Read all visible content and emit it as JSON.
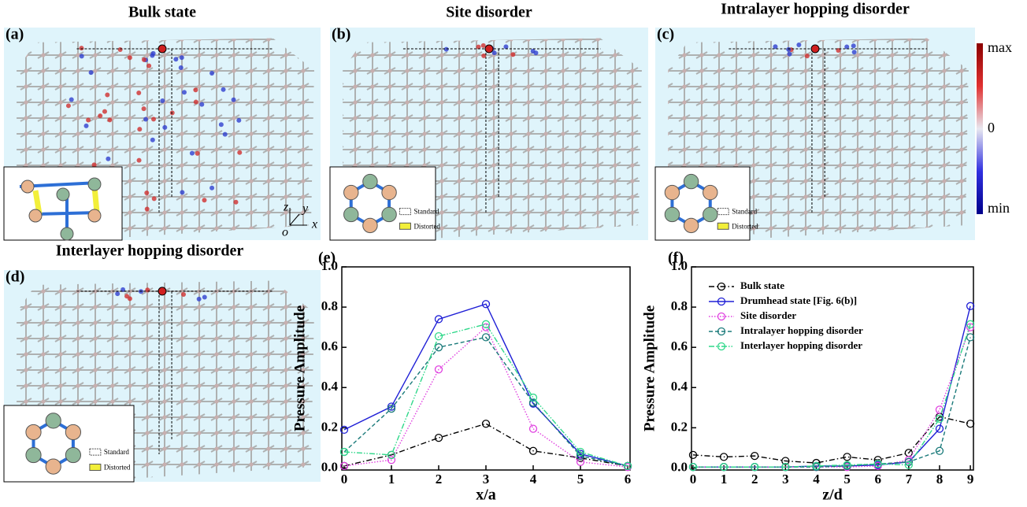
{
  "panels": [
    {
      "label": "(a)",
      "title": "Bulk state",
      "axes": {
        "z": "z",
        "y": "y",
        "o": "o",
        "x": "x"
      }
    },
    {
      "label": "(b)",
      "title": "Site disorder",
      "legend": [
        "Standard",
        "Distorted"
      ]
    },
    {
      "label": "(c)",
      "title": "Intralayer hopping disorder",
      "legend": [
        "Standard",
        "Distorted"
      ]
    },
    {
      "label": "(d)",
      "title": "Interlayer hopping disorder",
      "legend": [
        "Standard",
        "Distorted"
      ]
    }
  ],
  "colorbar": {
    "max": "max",
    "mid": "0",
    "min": "min"
  },
  "chart_data": [
    {
      "type": "line",
      "label": "(e)",
      "xlabel": "x/a",
      "ylabel": "Pressure Amplitude",
      "x": [
        0,
        1,
        2,
        3,
        4,
        5,
        6
      ],
      "xlim": [
        -0.05,
        6.05
      ],
      "xticks": [
        0,
        1,
        2,
        3,
        4,
        5,
        6
      ],
      "ylim": [
        -0.01,
        1.0
      ],
      "yticks": [
        {
          "value": 0,
          "label": "0.0"
        },
        0.2,
        0.4,
        0.6,
        0.8,
        {
          "value": 1,
          "label": "1.0"
        }
      ],
      "series": [
        {
          "color": "#000000",
          "style": "dashdot",
          "values": [
            0.01,
            0.065,
            0.15,
            0.22,
            0.085,
            0.05,
            0.01
          ]
        },
        {
          "color": "#1f1fd6",
          "style": "solid",
          "values": [
            0.19,
            0.305,
            0.74,
            0.815,
            0.32,
            0.07,
            0.01
          ]
        },
        {
          "color": "#e040e0",
          "style": "dotted",
          "values": [
            0.01,
            0.04,
            0.49,
            0.7,
            0.195,
            0.03,
            0.005
          ]
        },
        {
          "color": "#1a7a7a",
          "style": "dashed",
          "values": [
            0.08,
            0.295,
            0.6,
            0.65,
            0.325,
            0.06,
            0.01
          ]
        },
        {
          "color": "#2fd88a",
          "style": "dashdotdot",
          "values": [
            0.08,
            0.065,
            0.655,
            0.715,
            0.35,
            0.08,
            0.01
          ]
        }
      ]
    },
    {
      "type": "line",
      "label": "(f)",
      "xlabel": "z/d",
      "ylabel": "Pressure Amplitude",
      "legend": "upper left",
      "x": [
        0,
        1,
        2,
        3,
        4,
        5,
        6,
        7,
        8,
        9
      ],
      "xlim": [
        -0.05,
        9.1
      ],
      "xticks": [
        0,
        1,
        2,
        3,
        4,
        5,
        6,
        7,
        8,
        9
      ],
      "ylim": [
        -0.01,
        1.0
      ],
      "yticks": [
        {
          "value": 0,
          "label": "0.0"
        },
        0.2,
        0.4,
        0.6,
        0.8,
        {
          "value": 1,
          "label": "1.0"
        }
      ],
      "series": [
        {
          "name": "Bulk state",
          "color": "#000000",
          "style": "dashdot",
          "values": [
            0.065,
            0.055,
            0.06,
            0.035,
            0.025,
            0.055,
            0.04,
            0.075,
            0.255,
            0.22
          ]
        },
        {
          "name": "Drumhead state [Fig. 6(b)]",
          "color": "#1f1fd6",
          "style": "solid",
          "values": [
            0.005,
            0.005,
            0.005,
            0.005,
            0.01,
            0.01,
            0.015,
            0.03,
            0.195,
            0.805
          ]
        },
        {
          "name": "Site disorder",
          "color": "#e040e0",
          "style": "dotted",
          "values": [
            0.005,
            0.005,
            0.005,
            0.005,
            0.005,
            0.005,
            0.01,
            0.04,
            0.29,
            0.7
          ]
        },
        {
          "name": "Intralayer hopping disorder",
          "color": "#1a7a7a",
          "style": "dashed",
          "values": [
            0.005,
            0.005,
            0.005,
            0.005,
            0.005,
            0.01,
            0.02,
            0.03,
            0.085,
            0.65
          ]
        },
        {
          "name": "Interlayer hopping disorder",
          "color": "#2fd88a",
          "style": "dashdotdot",
          "values": [
            0.005,
            0.005,
            0.005,
            0.005,
            0.01,
            0.015,
            0.02,
            0.015,
            0.245,
            0.715
          ]
        }
      ]
    }
  ]
}
